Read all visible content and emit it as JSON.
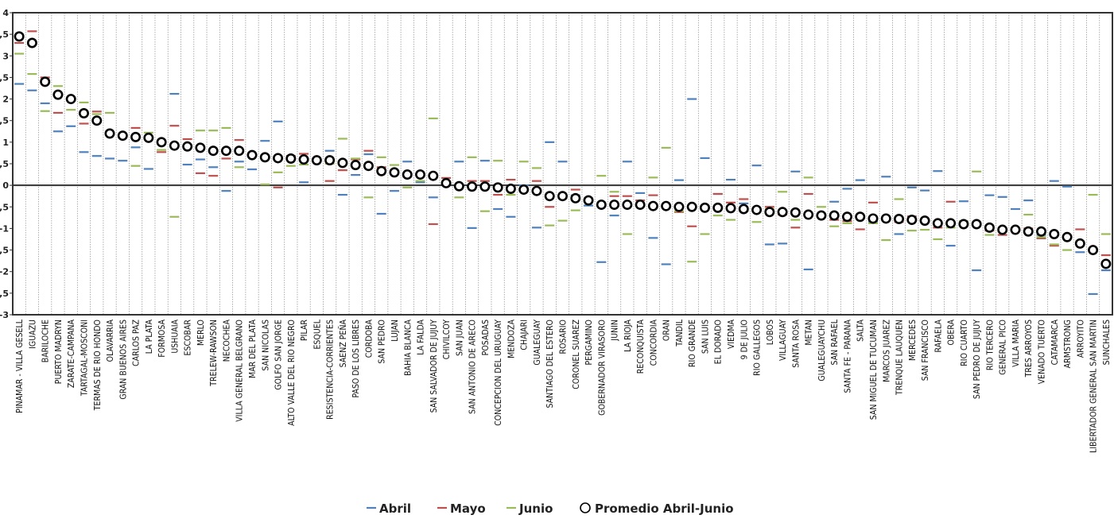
{
  "chart_data": {
    "type": "scatter",
    "ylim": [
      -3,
      4
    ],
    "yticks": [
      "-3",
      "-2,5",
      "-2",
      "-1,5",
      "-1",
      "-0,5",
      "0",
      "0,5",
      "1",
      "1,5",
      "2",
      "2,5",
      "3",
      "3,5",
      "4"
    ],
    "colors": {
      "Abril": "#4f81bd",
      "Mayo": "#c0504d",
      "Junio": "#9bbb59",
      "Promedio": "#000000"
    },
    "legend": [
      "Abril",
      "Mayo",
      "Junio",
      "Promedio Abril-Junio"
    ],
    "categories": [
      "PINAMAR - VILLA GESELL",
      "IGUAZU",
      "BARILOCHE",
      "PUERTO MADRYN",
      "ZARATE-CAMPANA",
      "TARTAGAL-MOSCONI",
      "TERMAS DE RIO HONDO",
      "OLAVARRIA",
      "GRAN BUENOS AIRES",
      "CARLOS PAZ",
      "LA PLATA",
      "FORMOSA",
      "USHUAIA",
      "ESCOBAR",
      "MERLO",
      "TRELEW-RAWSON",
      "NECOCHEA",
      "VILLA GENERAL BELGRANO",
      "MAR DEL PLATA",
      "SAN NICOLAS",
      "GOLFO SAN JORGE",
      "ALTO VALLE DEL RIO NEGRO",
      "PILAR",
      "ESQUEL",
      "RESISTENCIA-CORRIENTES",
      "SAENZ PEÑA",
      "PASO DE LOS LIBRES",
      "CORDOBA",
      "SAN PEDRO",
      "LUJAN",
      "BAHIA BLANCA",
      "LA FALDA",
      "SAN SALVADOR DE JUJUY",
      "CHIVILCOY",
      "SAN JUAN",
      "SAN ANTONIO DE ARECO",
      "POSADAS",
      "CONCEPCION DEL URUGUAY",
      "MENDOZA",
      "CHAJARI",
      "GUALEGUAY",
      "SANTIAGO DEL ESTERO",
      "ROSARIO",
      "CORONEL SUAREZ",
      "PERGAMINO",
      "GOBERNADOR VIRASORO",
      "JUNIN",
      "LA RIOJA",
      "RECONQUISTA",
      "CONCORDIA",
      "ORAN",
      "TANDIL",
      "RIO GRANDE",
      "SAN LUIS",
      "EL DORADO",
      "VIEDMA",
      "9 DE JULIO",
      "RIO GALLEGOS",
      "LOBOS",
      "VILLAGUAY",
      "SANTA ROSA",
      "METAN",
      "GUALEGUAYCHU",
      "SAN RAFAEL",
      "SANTA FE - PARANA",
      "SALTA",
      "SAN MIGUEL DE TUCUMAN",
      "MARCOS JUAREZ",
      "TRENQUE LAUQUEN",
      "MERCEDES",
      "SAN FRANCISCO",
      "RAFAELA",
      "OBERA",
      "RIO CUARTO",
      "SAN PEDRO DE JUJUY",
      "RIO TERCERO",
      "GENERAL PICO",
      "VILLA MARIA",
      "TRES ARROYOS",
      "VENADO TUERTO",
      "CATAMARCA",
      "ARMSTRONG",
      "ARROYITO",
      "LIBERTADOR GENERAL SAN MARTIN",
      "SUNCHALES"
    ],
    "series": [
      {
        "name": "Abril",
        "values": [
          2.35,
          2.2,
          1.9,
          1.25,
          1.37,
          0.77,
          0.68,
          0.62,
          0.57,
          0.88,
          0.38,
          1.0,
          2.12,
          0.48,
          0.6,
          0.42,
          -0.13,
          0.55,
          0.37,
          1.03,
          1.48,
          0.6,
          0.07,
          0.58,
          0.8,
          -0.22,
          0.24,
          0.72,
          -0.66,
          -0.13,
          0.55,
          0.07,
          -0.28,
          0.02,
          0.55,
          -0.99,
          0.57,
          -0.55,
          -0.73,
          0.0,
          -0.98,
          1.0,
          0.55,
          -0.23,
          -0.47,
          -1.78,
          -0.7,
          0.55,
          -0.18,
          -1.22,
          -1.83,
          0.12,
          2.0,
          0.63,
          -0.2,
          0.13,
          -0.42,
          0.46,
          -1.37,
          -1.35,
          0.32,
          -1.95,
          -0.73,
          -0.38,
          -0.08,
          0.12,
          -0.84,
          0.2,
          -1.13,
          -0.05,
          -0.12,
          0.33,
          -1.4,
          -0.37,
          -1.97,
          -0.23,
          -0.27,
          -0.55,
          -0.35,
          -1.15,
          0.1,
          -0.03,
          -1.55,
          -2.52,
          -1.97
        ]
      },
      {
        "name": "Mayo",
        "values": [
          3.3,
          3.57,
          2.5,
          1.68,
          2.0,
          1.43,
          1.71,
          1.2,
          1.13,
          1.33,
          1.1,
          0.77,
          1.38,
          1.07,
          0.28,
          0.22,
          0.62,
          1.05,
          0.72,
          0.65,
          -0.05,
          0.68,
          0.73,
          0.58,
          0.1,
          0.35,
          0.6,
          0.8,
          0.42,
          0.33,
          0.2,
          0.27,
          -0.9,
          0.17,
          -0.02,
          0.1,
          0.1,
          -0.22,
          0.13,
          -0.07,
          0.1,
          -0.5,
          -0.3,
          -0.1,
          -0.33,
          -0.48,
          -0.25,
          -0.25,
          -0.35,
          -0.23,
          -0.5,
          -0.62,
          -0.95,
          -0.48,
          -0.2,
          -0.4,
          -0.32,
          -0.55,
          -0.5,
          -0.68,
          -0.98,
          -0.2,
          -0.73,
          -0.8,
          -0.83,
          -1.02,
          -0.4,
          -0.78,
          -0.85,
          -0.72,
          -0.8,
          -0.98,
          -0.38,
          -0.92,
          -0.9,
          -1.05,
          -1.15,
          -1.05,
          -1.0,
          -1.23,
          -1.4,
          -1.18,
          -1.02,
          -1.48,
          -1.62
        ]
      },
      {
        "name": "Junio",
        "values": [
          3.05,
          2.58,
          1.72,
          2.3,
          1.75,
          1.92,
          1.65,
          1.68,
          1.15,
          0.45,
          1.22,
          0.82,
          -0.73,
          0.88,
          1.27,
          1.27,
          1.33,
          0.42,
          0.73,
          0.02,
          0.3,
          0.45,
          0.48,
          0.6,
          0.5,
          1.08,
          0.62,
          -0.28,
          0.65,
          0.47,
          -0.05,
          0.1,
          1.55,
          0.05,
          -0.28,
          0.65,
          -0.6,
          0.57,
          -0.22,
          0.55,
          0.4,
          -0.93,
          -0.82,
          -0.58,
          -0.3,
          0.22,
          -0.15,
          -1.13,
          -0.45,
          0.18,
          0.87,
          -0.6,
          -1.77,
          -1.13,
          -0.7,
          -0.8,
          -0.6,
          -0.85,
          -0.55,
          -0.15,
          -0.8,
          0.18,
          -0.5,
          -0.95,
          -0.88,
          -0.7,
          -0.88,
          -1.27,
          -0.32,
          -1.05,
          -1.03,
          -1.25,
          -0.98,
          -0.83,
          0.32,
          -1.15,
          -1.08,
          -1.0,
          -0.68,
          -1.2,
          -1.37,
          -1.5,
          -1.3,
          -0.22,
          -1.13
        ]
      },
      {
        "name": "Promedio Abril-Junio",
        "values": [
          3.45,
          3.3,
          2.4,
          2.1,
          2.0,
          1.67,
          1.5,
          1.2,
          1.15,
          1.12,
          1.1,
          1.0,
          0.92,
          0.9,
          0.87,
          0.8,
          0.8,
          0.8,
          0.7,
          0.65,
          0.63,
          0.62,
          0.6,
          0.58,
          0.58,
          0.52,
          0.47,
          0.45,
          0.33,
          0.3,
          0.25,
          0.25,
          0.22,
          0.05,
          -0.02,
          -0.03,
          -0.03,
          -0.05,
          -0.08,
          -0.1,
          -0.13,
          -0.25,
          -0.25,
          -0.3,
          -0.35,
          -0.45,
          -0.45,
          -0.45,
          -0.45,
          -0.48,
          -0.48,
          -0.5,
          -0.5,
          -0.52,
          -0.52,
          -0.53,
          -0.55,
          -0.57,
          -0.62,
          -0.62,
          -0.63,
          -0.68,
          -0.7,
          -0.7,
          -0.73,
          -0.73,
          -0.77,
          -0.77,
          -0.78,
          -0.8,
          -0.82,
          -0.88,
          -0.88,
          -0.9,
          -0.9,
          -0.98,
          -1.03,
          -1.03,
          -1.07,
          -1.07,
          -1.13,
          -1.2,
          -1.35,
          -1.5,
          -1.82
        ]
      }
    ]
  }
}
